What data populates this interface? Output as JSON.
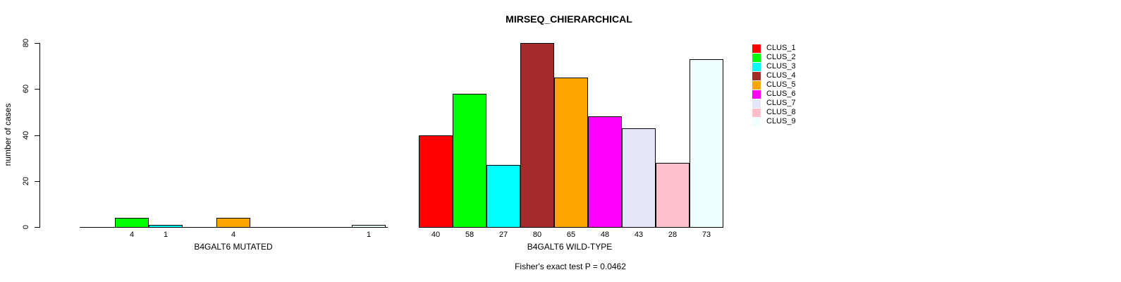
{
  "title": "MIRSEQ_CHIERARCHICAL",
  "chart_data": {
    "type": "bar",
    "title": "MIRSEQ_CHIERARCHICAL",
    "ylabel": "number of cases",
    "ylim": [
      0,
      80
    ],
    "yticks": [
      0,
      20,
      40,
      60,
      80
    ],
    "grid": false,
    "legend_position": "top-right",
    "footnote": "Fisher's exact test P = 0.0462",
    "clusters": [
      {
        "name": "CLUS_1",
        "color": "#FF0000"
      },
      {
        "name": "CLUS_2",
        "color": "#00FF00"
      },
      {
        "name": "CLUS_3",
        "color": "#00FFFF"
      },
      {
        "name": "CLUS_4",
        "color": "#A52A2A"
      },
      {
        "name": "CLUS_5",
        "color": "#FFA500"
      },
      {
        "name": "CLUS_6",
        "color": "#FF00FF"
      },
      {
        "name": "CLUS_7",
        "color": "#E6E6FA"
      },
      {
        "name": "CLUS_8",
        "color": "#FFC0CB"
      },
      {
        "name": "CLUS_9",
        "color": "#F0FFFF"
      }
    ],
    "groups": [
      {
        "label": "B4GALT6 MUTATED",
        "values": [
          0,
          4,
          1,
          0,
          4,
          0,
          0,
          0,
          1
        ]
      },
      {
        "label": "B4GALT6 WILD-TYPE",
        "values": [
          40,
          58,
          27,
          80,
          65,
          48,
          43,
          28,
          73
        ]
      }
    ]
  }
}
